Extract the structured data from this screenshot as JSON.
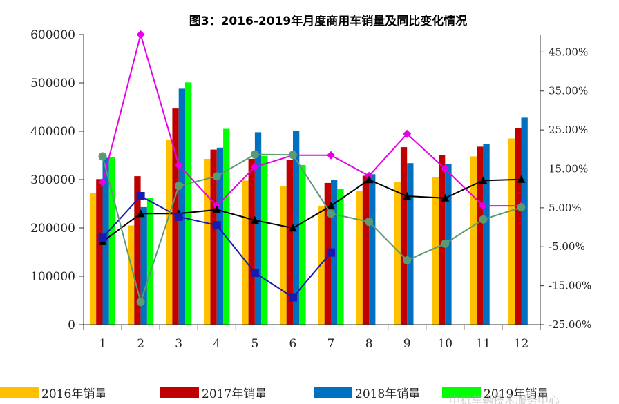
{
  "chart_data": {
    "type": "bar",
    "title": "图3：2016-2019年月度商用车销量及同比变化情况",
    "categories": [
      "1",
      "2",
      "3",
      "4",
      "5",
      "6",
      "7",
      "8",
      "9",
      "10",
      "11",
      "12"
    ],
    "ylim": [
      0,
      600000
    ],
    "y_ticks": [
      "0",
      "100000",
      "200000",
      "300000",
      "400000",
      "500000",
      "600000"
    ],
    "y2lim": [
      -0.25,
      0.5
    ],
    "y2_ticks": [
      "-25.00%",
      "-15.00%",
      "-5.00%",
      "5.00%",
      "15.00%",
      "25.00%",
      "35.00%",
      "45.00%"
    ],
    "y2_tick_values": [
      -0.25,
      -0.15,
      -0.05,
      0.05,
      0.15,
      0.25,
      0.35,
      0.45
    ],
    "grid": false,
    "legend_position": "bottom",
    "series": [
      {
        "name": "2016年销量",
        "color": "#FFC000",
        "values": [
          272000,
          205000,
          383000,
          343000,
          298000,
          287000,
          246000,
          276000,
          295000,
          305000,
          348000,
          385000
        ]
      },
      {
        "name": "2017年销量",
        "color": "#C00000",
        "values": [
          301000,
          307000,
          447000,
          362000,
          343000,
          340000,
          293000,
          308000,
          367000,
          351000,
          368000,
          407000
        ]
      },
      {
        "name": "2018年销量",
        "color": "#0070C0",
        "values": [
          345000,
          243000,
          488000,
          366000,
          398000,
          400000,
          300000,
          311000,
          334000,
          332000,
          374000,
          428000
        ]
      },
      {
        "name": "2019年销量",
        "color": "#00FF00",
        "values": [
          346000,
          262000,
          501000,
          405000,
          349000,
          330000,
          281000,
          null,
          null,
          null,
          null,
          null
        ]
      }
    ],
    "line_series": [
      {
        "color": "#E600E6",
        "marker": "diamond",
        "values": [
          0.115,
          0.495,
          0.16,
          0.055,
          0.155,
          0.185,
          0.185,
          0.132,
          0.24,
          0.15,
          0.055,
          0.055
        ]
      },
      {
        "color": "#000000",
        "marker": "triangle",
        "values": [
          -0.037,
          0.035,
          0.035,
          0.045,
          0.018,
          -0.002,
          0.055,
          0.122,
          0.08,
          0.075,
          0.12,
          0.123
        ]
      },
      {
        "color": "#1A1AB0",
        "marker": "square",
        "values": [
          -0.027,
          0.08,
          0.027,
          0.005,
          -0.117,
          -0.18,
          -0.065,
          null,
          null,
          null,
          null,
          null
        ]
      },
      {
        "color": "#5B9B72",
        "marker": "circle",
        "values": [
          0.182,
          -0.192,
          0.106,
          0.131,
          0.187,
          0.186,
          0.035,
          0.014,
          -0.085,
          -0.042,
          0.02,
          0.051
        ]
      }
    ]
  },
  "watermark": "中机车辆技术服务中心"
}
